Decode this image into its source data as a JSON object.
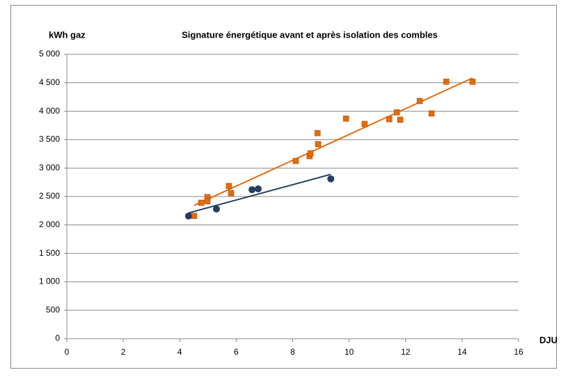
{
  "chart_data": {
    "type": "scatter",
    "title": "Signature énergétique avant et après isolation des combles",
    "ylabel": "kWh gaz",
    "xlabel": "DJU",
    "xlim": [
      0,
      16
    ],
    "xticks": [
      0,
      2,
      4,
      6,
      8,
      10,
      12,
      14,
      16
    ],
    "ylim": [
      0,
      5000
    ],
    "yticks": [
      0,
      500,
      {
        "value": 1000,
        "label": "1 000"
      },
      {
        "value": 1500,
        "label": "1 500"
      },
      {
        "value": 2000,
        "label": "2 000"
      },
      {
        "value": 2500,
        "label": "2 500"
      },
      {
        "value": 3000,
        "label": "3 000"
      },
      {
        "value": 3500,
        "label": "3 500"
      },
      {
        "value": 4000,
        "label": "4 000"
      },
      {
        "value": 4500,
        "label": "4 500"
      },
      {
        "value": 5000,
        "label": "5 000"
      }
    ],
    "grid": true,
    "trendline": true,
    "series": [
      {
        "color": "#e46c0a",
        "marker": "square",
        "x": [
          4.51,
          4.76,
          4.98,
          4.98,
          5.74,
          5.82,
          8.11,
          8.6,
          8.63,
          8.88,
          8.9,
          9.89,
          10.55,
          11.42,
          11.69,
          11.81,
          12.5,
          12.92,
          13.44,
          14.37
        ],
        "values": [
          2160,
          2390,
          2490,
          2415,
          2685,
          2560,
          3125,
          3210,
          3260,
          3615,
          3420,
          3870,
          3775,
          3860,
          3980,
          3850,
          4180,
          3960,
          4520,
          4520
        ]
      },
      {
        "color": "#243f60",
        "marker": "circle",
        "x": [
          4.31,
          5.3,
          6.56,
          6.78,
          9.35
        ],
        "values": [
          2157,
          2280,
          2620,
          2635,
          2810
        ]
      }
    ]
  }
}
